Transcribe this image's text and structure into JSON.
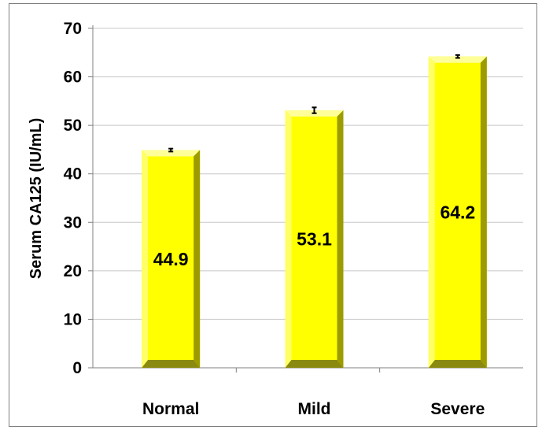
{
  "chart_data": {
    "type": "bar",
    "categories": [
      "Normal",
      "Mild",
      "Severe"
    ],
    "values": [
      44.9,
      53.1,
      64.2
    ],
    "error": [
      0.3,
      0.6,
      0.3
    ],
    "value_labels": [
      "44.9",
      "53.1",
      "64.2"
    ],
    "ylabel": "Serum CA125 (IU/mL)",
    "xlabel": "",
    "title": "",
    "ylim": [
      0,
      70
    ],
    "yticks": [
      0,
      10,
      20,
      30,
      40,
      50,
      60,
      70
    ],
    "grid": "horizontal",
    "legend": "none",
    "colors": {
      "bar_face": "#ffff00",
      "bar_light": "#ffff99",
      "bar_shade": "#9c9c00",
      "bar_base": "#8a8a10",
      "grid": "#c8c8c8",
      "axis": "#808080",
      "error_bar": "#000000"
    }
  }
}
